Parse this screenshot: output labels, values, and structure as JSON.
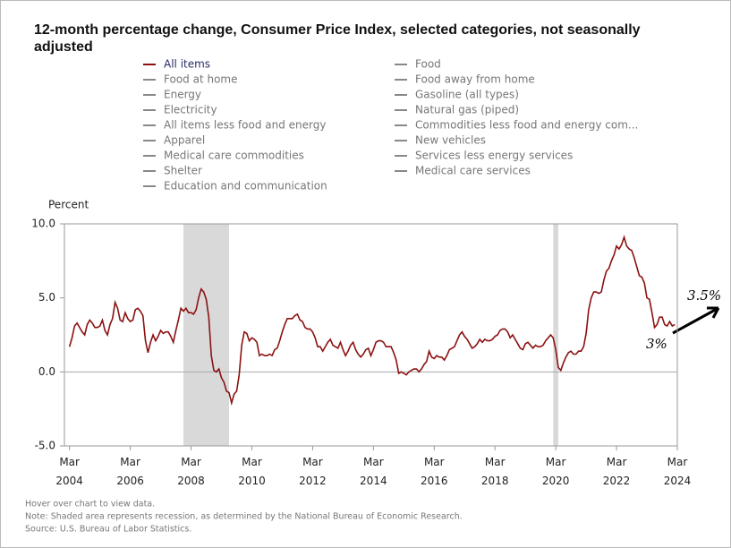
{
  "chart_data": {
    "type": "line",
    "title": "12-month percentage change, Consumer Price Index, selected categories, not seasonally adjusted",
    "y_label": "Percent",
    "series": [
      {
        "name": "All items",
        "color": "#8b1111",
        "values": [
          1.7,
          2.3,
          3.1,
          3.3,
          3.0,
          2.7,
          2.5,
          3.2,
          3.5,
          3.3,
          3.0,
          3.0,
          3.1,
          3.5,
          2.8,
          2.5,
          3.2,
          3.6,
          4.7,
          4.3,
          3.5,
          3.4,
          4.0,
          3.6,
          3.4,
          3.5,
          4.2,
          4.3,
          4.1,
          3.8,
          2.1,
          1.3,
          2.0,
          2.5,
          2.1,
          2.4,
          2.8,
          2.6,
          2.7,
          2.7,
          2.4,
          2.0,
          2.8,
          3.5,
          4.3,
          4.1,
          4.3,
          4.0,
          4.0,
          3.9,
          4.2,
          5.0,
          5.6,
          5.4,
          4.9,
          3.7,
          1.1,
          0.1,
          0.0,
          0.2,
          -0.4,
          -0.7,
          -1.3,
          -1.4,
          -2.1,
          -1.5,
          -1.3,
          -0.2,
          1.8,
          2.7,
          2.6,
          2.1,
          2.3,
          2.2,
          2.0,
          1.1,
          1.2,
          1.1,
          1.1,
          1.2,
          1.1,
          1.5,
          1.6,
          2.1,
          2.7,
          3.2,
          3.6,
          3.6,
          3.6,
          3.8,
          3.9,
          3.5,
          3.4,
          3.0,
          2.9,
          2.9,
          2.7,
          2.3,
          1.7,
          1.7,
          1.4,
          1.7,
          2.0,
          2.2,
          1.8,
          1.7,
          1.6,
          2.0,
          1.5,
          1.1,
          1.4,
          1.8,
          2.0,
          1.5,
          1.2,
          1.0,
          1.2,
          1.5,
          1.6,
          1.1,
          1.5,
          2.0,
          2.1,
          2.1,
          2.0,
          1.7,
          1.7,
          1.7,
          1.3,
          0.8,
          -0.1,
          0.0,
          -0.1,
          -0.2,
          0.0,
          0.1,
          0.2,
          0.2,
          0.0,
          0.2,
          0.5,
          0.7,
          1.4,
          1.0,
          0.9,
          1.1,
          1.0,
          1.0,
          0.8,
          1.1,
          1.5,
          1.6,
          1.7,
          2.1,
          2.5,
          2.7,
          2.4,
          2.2,
          1.9,
          1.6,
          1.7,
          1.9,
          2.2,
          2.0,
          2.2,
          2.1,
          2.1,
          2.2,
          2.4,
          2.5,
          2.8,
          2.9,
          2.9,
          2.7,
          2.3,
          2.5,
          2.2,
          1.9,
          1.6,
          1.5,
          1.9,
          2.0,
          1.8,
          1.6,
          1.8,
          1.7,
          1.7,
          1.8,
          2.1,
          2.3,
          2.5,
          2.3,
          1.5,
          0.3,
          0.1,
          0.6,
          1.0,
          1.3,
          1.4,
          1.2,
          1.2,
          1.4,
          1.4,
          1.7,
          2.6,
          4.2,
          5.0,
          5.4,
          5.4,
          5.3,
          5.4,
          6.2,
          6.8,
          7.0,
          7.5,
          7.9,
          8.5,
          8.3,
          8.6,
          9.1,
          8.5,
          8.3,
          8.2,
          7.7,
          7.1,
          6.5,
          6.4,
          6.0,
          5.0,
          4.9,
          4.0,
          3.0,
          3.2,
          3.7,
          3.7,
          3.2,
          3.1,
          3.4,
          3.1,
          3.2
        ]
      }
    ],
    "x": [
      "2004-03",
      "2004-04",
      "2004-05",
      "2004-06",
      "2004-07",
      "2004-08",
      "2004-09",
      "2004-10",
      "2004-11",
      "2004-12",
      "2005-01",
      "2005-02",
      "2005-03",
      "2005-04",
      "2005-05",
      "2005-06",
      "2005-07",
      "2005-08",
      "2005-09",
      "2005-10",
      "2005-11",
      "2005-12",
      "2006-01",
      "2006-02",
      "2006-03",
      "2006-04",
      "2006-05",
      "2006-06",
      "2006-07",
      "2006-08",
      "2006-09",
      "2006-10",
      "2006-11",
      "2006-12",
      "2007-01",
      "2007-02",
      "2007-03",
      "2007-04",
      "2007-05",
      "2007-06",
      "2007-07",
      "2007-08",
      "2007-09",
      "2007-10",
      "2007-11",
      "2007-12",
      "2008-01",
      "2008-02",
      "2008-03",
      "2008-04",
      "2008-05",
      "2008-06",
      "2008-07",
      "2008-08",
      "2008-09",
      "2008-10",
      "2008-11",
      "2008-12",
      "2009-01",
      "2009-02",
      "2009-03",
      "2009-04",
      "2009-05",
      "2009-06",
      "2009-07",
      "2009-08",
      "2009-09",
      "2009-10",
      "2009-11",
      "2009-12",
      "2010-01",
      "2010-02",
      "2010-03",
      "2010-04",
      "2010-05",
      "2010-06",
      "2010-07",
      "2010-08",
      "2010-09",
      "2010-10",
      "2010-11",
      "2010-12",
      "2011-01",
      "2011-02",
      "2011-03",
      "2011-04",
      "2011-05",
      "2011-06",
      "2011-07",
      "2011-08",
      "2011-09",
      "2011-10",
      "2011-11",
      "2011-12",
      "2012-01",
      "2012-02",
      "2012-03",
      "2012-04",
      "2012-05",
      "2012-06",
      "2012-07",
      "2012-08",
      "2012-09",
      "2012-10",
      "2012-11",
      "2012-12",
      "2013-01",
      "2013-02",
      "2013-03",
      "2013-04",
      "2013-05",
      "2013-06",
      "2013-07",
      "2013-08",
      "2013-09",
      "2013-10",
      "2013-11",
      "2013-12",
      "2014-01",
      "2014-02",
      "2014-03",
      "2014-04",
      "2014-05",
      "2014-06",
      "2014-07",
      "2014-08",
      "2014-09",
      "2014-10",
      "2014-11",
      "2014-12",
      "2015-01",
      "2015-02",
      "2015-03",
      "2015-04",
      "2015-05",
      "2015-06",
      "2015-07",
      "2015-08",
      "2015-09",
      "2015-10",
      "2015-11",
      "2015-12",
      "2016-01",
      "2016-02",
      "2016-03",
      "2016-04",
      "2016-05",
      "2016-06",
      "2016-07",
      "2016-08",
      "2016-09",
      "2016-10",
      "2016-11",
      "2016-12",
      "2017-01",
      "2017-02",
      "2017-03",
      "2017-04",
      "2017-05",
      "2017-06",
      "2017-07",
      "2017-08",
      "2017-09",
      "2017-10",
      "2017-11",
      "2017-12",
      "2018-01",
      "2018-02",
      "2018-03",
      "2018-04",
      "2018-05",
      "2018-06",
      "2018-07",
      "2018-08",
      "2018-09",
      "2018-10",
      "2018-11",
      "2018-12",
      "2019-01",
      "2019-02",
      "2019-03",
      "2019-04",
      "2019-05",
      "2019-06",
      "2019-07",
      "2019-08",
      "2019-09",
      "2019-10",
      "2019-11",
      "2019-12",
      "2020-01",
      "2020-02",
      "2020-03",
      "2020-04",
      "2020-05",
      "2020-06",
      "2020-07",
      "2020-08",
      "2020-09",
      "2020-10",
      "2020-11",
      "2020-12",
      "2021-01",
      "2021-02",
      "2021-03",
      "2021-04",
      "2021-05",
      "2021-06",
      "2021-07",
      "2021-08",
      "2021-09",
      "2021-10",
      "2021-11",
      "2021-12",
      "2022-01",
      "2022-02",
      "2022-03",
      "2022-04",
      "2022-05",
      "2022-06",
      "2022-07",
      "2022-08",
      "2022-09",
      "2022-10",
      "2022-11",
      "2022-12",
      "2023-01",
      "2023-02",
      "2023-03",
      "2023-04",
      "2023-05",
      "2023-06",
      "2023-07",
      "2023-08",
      "2023-09",
      "2023-10",
      "2023-11",
      "2023-12",
      "2024-01",
      "2024-02"
    ],
    "hidden_series": [
      {
        "name": "Food",
        "color": "#888888"
      },
      {
        "name": "Food at home",
        "color": "#888888"
      },
      {
        "name": "Food away from home",
        "color": "#888888"
      },
      {
        "name": "Energy",
        "color": "#888888"
      },
      {
        "name": "Gasoline (all types)",
        "color": "#888888"
      },
      {
        "name": "Electricity",
        "color": "#888888"
      },
      {
        "name": "Natural gas (piped)",
        "color": "#888888"
      },
      {
        "name": "All items less food and energy",
        "color": "#888888"
      },
      {
        "name": "Commodities less food and energy com...",
        "color": "#888888"
      },
      {
        "name": "Apparel",
        "color": "#888888"
      },
      {
        "name": "New vehicles",
        "color": "#888888"
      },
      {
        "name": "Medical care commodities",
        "color": "#888888"
      },
      {
        "name": "Services less energy services",
        "color": "#888888"
      },
      {
        "name": "Shelter",
        "color": "#888888"
      },
      {
        "name": "Medical care services",
        "color": "#888888"
      },
      {
        "name": "Education and communication",
        "color": "#888888"
      }
    ],
    "recessions": [
      [
        "2007-12",
        "2009-06"
      ],
      [
        "2020-02",
        "2020-04"
      ]
    ],
    "recession_color": "#d9d9d9",
    "xlim": [
      "2004-01",
      "2024-03"
    ],
    "xticks": [
      {
        "value": "2004-03",
        "label": "Mar 2004"
      },
      {
        "value": "2006-03",
        "label": "Mar 2006"
      },
      {
        "value": "2008-03",
        "label": "Mar 2008"
      },
      {
        "value": "2010-03",
        "label": "Mar 2010"
      },
      {
        "value": "2012-03",
        "label": "Mar 2012"
      },
      {
        "value": "2014-03",
        "label": "Mar 2014"
      },
      {
        "value": "2016-03",
        "label": "Mar 2016"
      },
      {
        "value": "2018-03",
        "label": "Mar 2018"
      },
      {
        "value": "2020-03",
        "label": "Mar 2020"
      },
      {
        "value": "2022-03",
        "label": "Mar 2022"
      },
      {
        "value": "2024-03",
        "label": "Mar 2024"
      }
    ],
    "ylim": [
      -5,
      10
    ],
    "yticks": [
      {
        "value": 10,
        "label": "10.0"
      },
      {
        "value": 5,
        "label": "5.0"
      },
      {
        "value": 0,
        "label": "0.0"
      },
      {
        "value": -5,
        "label": "-5.0"
      }
    ],
    "annotations": [
      "3.5%",
      "3%"
    ],
    "footnotes": [
      "Hover over chart to view data.",
      "Note: Shaded area represents recession, as determined by the National Bureau of Economic Research.",
      "Source: U.S. Bureau of Labor Statistics."
    ]
  }
}
